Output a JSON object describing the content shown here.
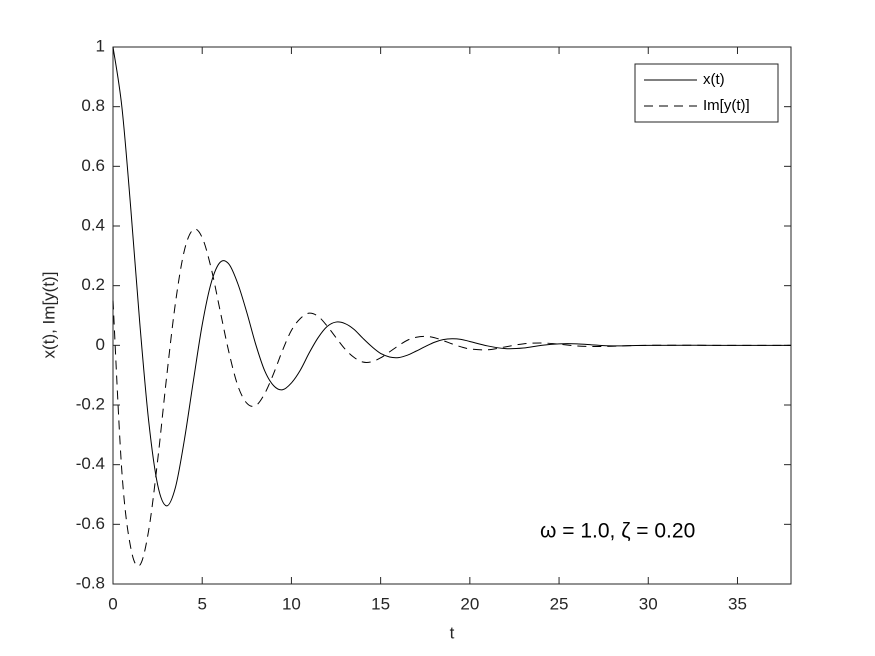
{
  "chart_data": {
    "type": "line",
    "xlabel": "t",
    "ylabel": "x(t), Im[y(t)]",
    "annotation": "ω = 1.0, ζ = 0.20",
    "x": [
      0,
      0.5,
      1,
      1.5,
      2,
      2.5,
      3,
      3.5,
      4,
      4.5,
      5,
      5.5,
      6,
      6.5,
      7,
      7.5,
      8,
      8.5,
      9,
      9.5,
      10,
      10.5,
      11,
      11.5,
      12,
      12.5,
      13,
      13.5,
      14,
      14.5,
      15,
      15.5,
      16,
      16.5,
      17,
      17.5,
      18,
      18.5,
      19,
      19.5,
      20,
      21,
      22,
      23,
      24,
      25,
      26,
      27,
      28,
      30,
      34,
      38
    ],
    "series": [
      {
        "name": "x(t)",
        "color": "#000000",
        "linestyle": "solid",
        "values": [
          1,
          0.798,
          0.456,
          0.075,
          -0.254,
          -0.467,
          -0.538,
          -0.476,
          -0.317,
          -0.121,
          0.069,
          0.209,
          0.278,
          0.272,
          0.206,
          0.11,
          0.003,
          -0.085,
          -0.135,
          -0.149,
          -0.126,
          -0.083,
          -0.025,
          0.026,
          0.063,
          0.078,
          0.073,
          0.054,
          0.024,
          -0.004,
          -0.027,
          -0.039,
          -0.041,
          -0.033,
          -0.019,
          -0.004,
          0.01,
          0.019,
          0.022,
          0.02,
          0.013,
          -0.002,
          -0.011,
          -0.009,
          0,
          0.005,
          0.005,
          0.001,
          -0.002,
          0,
          0,
          0
        ]
      },
      {
        "name": "Im[y(t)]",
        "color": "#000000",
        "linestyle": "dashed",
        "values": [
          0.15,
          -0.426,
          -0.68,
          -0.737,
          -0.62,
          -0.387,
          -0.109,
          0.142,
          0.318,
          0.388,
          0.361,
          0.259,
          0.117,
          -0.024,
          -0.136,
          -0.194,
          -0.202,
          -0.162,
          -0.095,
          -0.017,
          0.05,
          0.09,
          0.108,
          0.097,
          0.065,
          0.026,
          -0.012,
          -0.04,
          -0.056,
          -0.055,
          -0.042,
          -0.022,
          -0.001,
          0.017,
          0.027,
          0.03,
          0.026,
          0.016,
          0.005,
          -0.005,
          -0.012,
          -0.015,
          -0.005,
          0.005,
          0.008,
          0.004,
          -0.002,
          -0.004,
          -0.003,
          0,
          0,
          0
        ]
      }
    ],
    "xlim": [
      0,
      38
    ],
    "ylim": [
      -0.8,
      1
    ],
    "xticks": [
      0,
      5,
      10,
      15,
      20,
      25,
      30,
      35
    ],
    "yticks": [
      -0.8,
      -0.6,
      -0.4,
      -0.2,
      0,
      0.2,
      0.4,
      0.6,
      0.8,
      1
    ],
    "grid": false,
    "legend": "upper right"
  }
}
